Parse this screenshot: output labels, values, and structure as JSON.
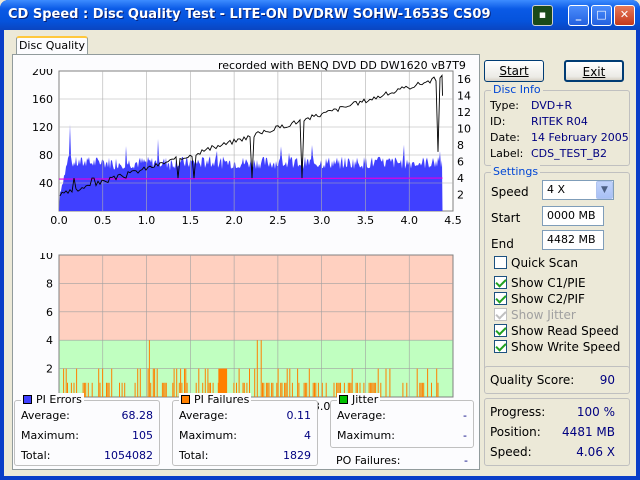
{
  "window": {
    "title": "CD Speed : Disc Quality Test - LITE-ON DVDRW SOHW-1653S CS09"
  },
  "tabs": [
    {
      "label": "Disc Quality"
    }
  ],
  "recorded_text": "recorded with BENQ    DVD DD DW1620    vB7T9",
  "buttons": {
    "start": "Start",
    "exit": "Exit"
  },
  "disc_info": {
    "title": "Disc Info",
    "type_label": "Type:",
    "type": "DVD+R",
    "id_label": "ID:",
    "id": "RITEK R04",
    "date_label": "Date:",
    "date": "14 February 2005",
    "label_label": "Label:",
    "label": "CDS_TEST_B2"
  },
  "settings": {
    "title": "Settings",
    "speed_label": "Speed",
    "speed": "4 X",
    "start_label": "Start",
    "start": "0000 MB",
    "end_label": "End",
    "end": "4482 MB"
  },
  "options": [
    {
      "label": "Quick Scan",
      "checked": false,
      "enabled": true
    },
    {
      "label": "Show C1/PIE",
      "checked": true,
      "enabled": true
    },
    {
      "label": "Show C2/PIF",
      "checked": true,
      "enabled": true
    },
    {
      "label": "Show Jitter",
      "checked": true,
      "enabled": false
    },
    {
      "label": "Show Read Speed",
      "checked": true,
      "enabled": true
    },
    {
      "label": "Show Write Speed",
      "checked": true,
      "enabled": true
    }
  ],
  "quality": {
    "label": "Quality Score:",
    "value": "90"
  },
  "progress": {
    "progress_label": "Progress:",
    "progress": "100 %",
    "position_label": "Position:",
    "position": "4481 MB",
    "speed_label": "Speed:",
    "speed": "4.06 X"
  },
  "pi_errors": {
    "title": "PI Errors",
    "color": "#4040ff",
    "average_label": "Average:",
    "average": "68.28",
    "maximum_label": "Maximum:",
    "maximum": "105",
    "total_label": "Total:",
    "total": "1054082"
  },
  "pi_failures": {
    "title": "PI Failures",
    "color": "#ff8000",
    "average_label": "Average:",
    "average": "0.11",
    "maximum_label": "Maximum:",
    "maximum": "4",
    "total_label": "Total:",
    "total": "1829"
  },
  "jitter": {
    "title": "Jitter",
    "color": "#00c000",
    "average_label": "Average:",
    "average": "-",
    "maximum_label": "Maximum:",
    "maximum": "-",
    "po_label": "PO Failures:",
    "po": "-"
  },
  "chart_data": [
    {
      "type": "bar",
      "name": "PI Errors",
      "x_ticks": [
        "0.0",
        "0.5",
        "1.0",
        "1.5",
        "2.0",
        "2.5",
        "3.0",
        "3.5",
        "4.0",
        "4.5"
      ],
      "xlim": [
        0,
        4.5
      ],
      "y_ticks_left": [
        "40",
        "80",
        "120",
        "160",
        "200"
      ],
      "ylim_left": [
        0,
        200
      ],
      "y_ticks_right": [
        "2",
        "4",
        "6",
        "8",
        "10",
        "12",
        "14",
        "16"
      ],
      "ylim_right": [
        0,
        17
      ],
      "pie_approx_level": 68,
      "pie_range": [
        55,
        105
      ],
      "read_speed_start": 1.6,
      "read_speed_end": 16,
      "write_speed": 4,
      "data_end": 4.38
    },
    {
      "type": "bar",
      "name": "PI Failures",
      "x_ticks": [
        "0.0",
        "0.5",
        "1.0",
        "1.5",
        "2.0",
        "2.5",
        "3.0",
        "3.5",
        "4.0",
        "4.5"
      ],
      "xlim": [
        0,
        4.5
      ],
      "y_ticks": [
        "2",
        "4",
        "6",
        "8",
        "10"
      ],
      "ylim": [
        0,
        10
      ],
      "bands": [
        {
          "from": 0,
          "to": 4,
          "color": "#c0ffc0"
        },
        {
          "from": 4,
          "to": 10,
          "color": "#ffd0c0"
        }
      ],
      "max": 4,
      "data_end": 4.38
    }
  ]
}
